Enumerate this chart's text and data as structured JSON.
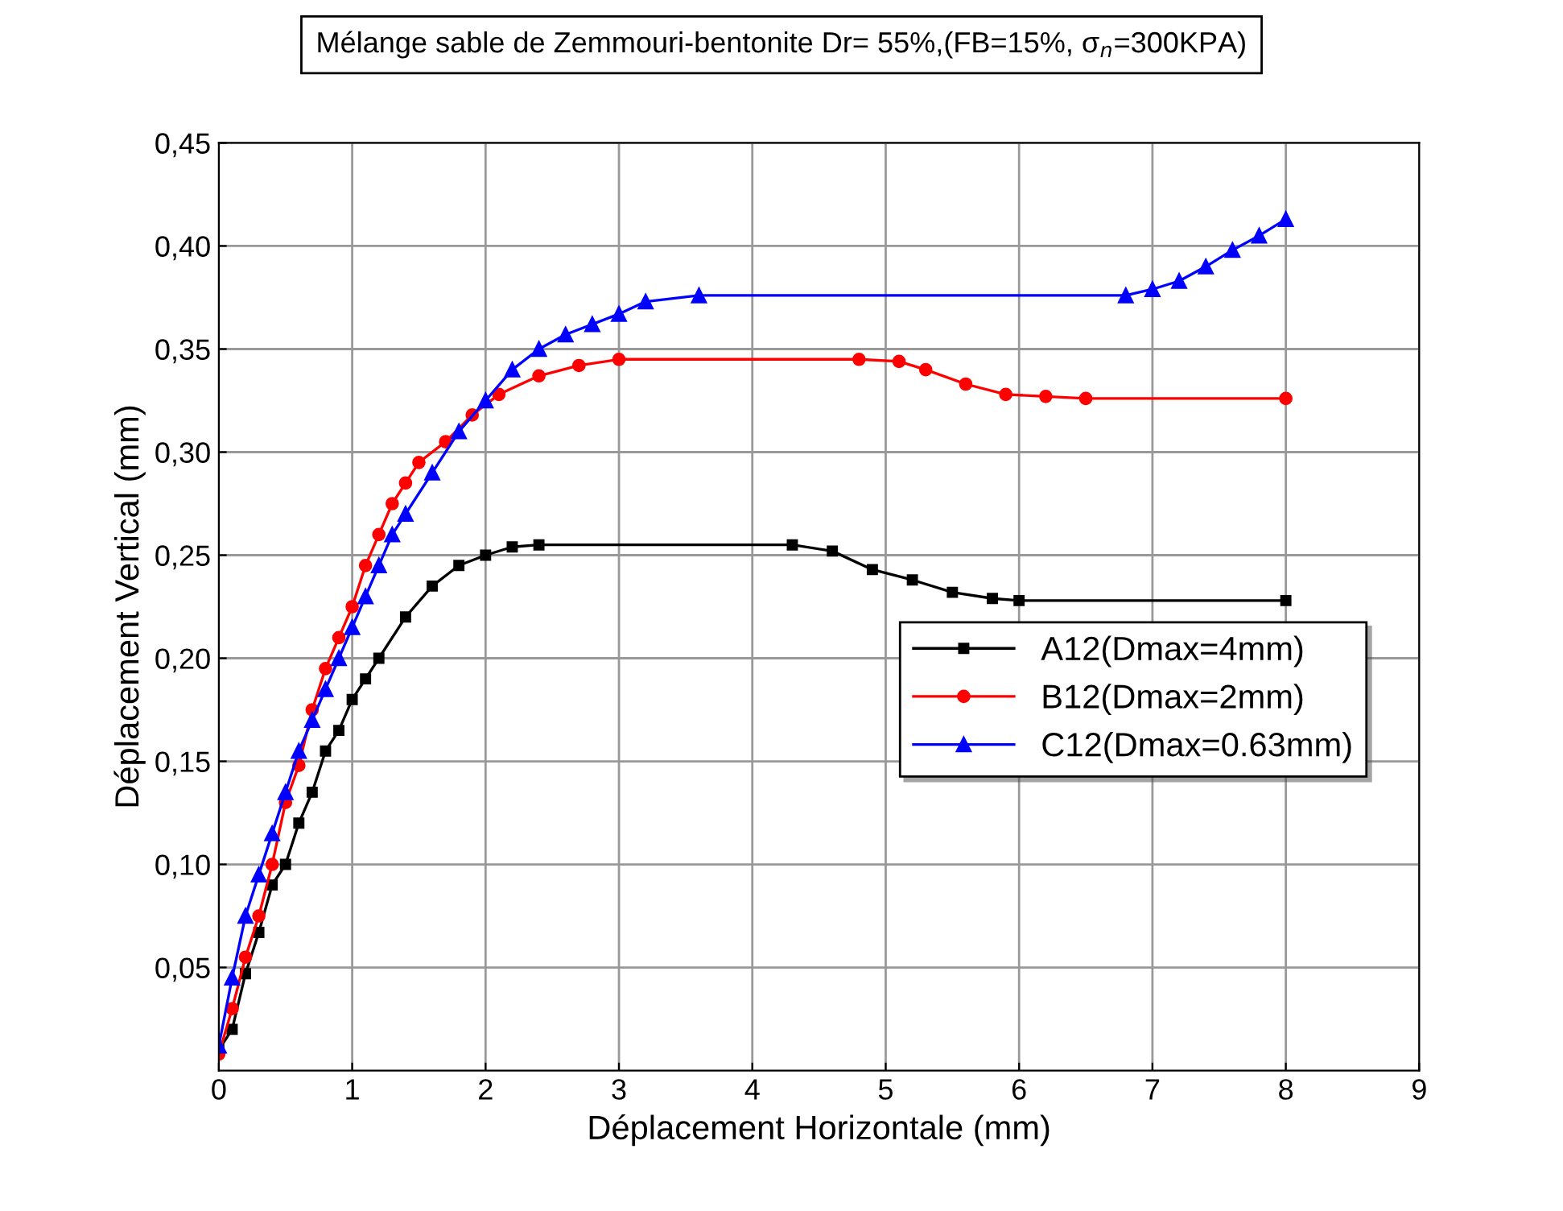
{
  "chart_data": {
    "type": "line",
    "title": "Mélange sable de Zemmouri-bentonite Dr= 55%,(FB=15%, σ$_{n}$=300KPA)",
    "xlabel": "Déplacement Horizontale (mm)",
    "ylabel": "Déplacement Vertical (mm)",
    "xlim": [
      0,
      9
    ],
    "xticks": [
      0,
      1,
      2,
      3,
      4,
      5,
      6,
      7,
      8,
      9
    ],
    "ylim": [
      0,
      0.45
    ],
    "yticks": [
      {
        "value": 0.05,
        "label": "0,05"
      },
      {
        "value": 0.1,
        "label": "0,10"
      },
      {
        "value": 0.15,
        "label": "0,15"
      },
      {
        "value": 0.2,
        "label": "0,20"
      },
      {
        "value": 0.25,
        "label": "0,25"
      },
      {
        "value": 0.3,
        "label": "0,30"
      },
      {
        "value": 0.35,
        "label": "0,35"
      },
      {
        "value": 0.4,
        "label": "0,40"
      },
      {
        "value": 0.45,
        "label": "0,45"
      }
    ],
    "grid": true,
    "legend": "right",
    "line_style": "solid",
    "series": [
      {
        "name": "A12(Dmax=4mm)",
        "color": "#000000",
        "marker": "square",
        "x": [
          0,
          0.1,
          0.2,
          0.3,
          0.4,
          0.5,
          0.6,
          0.7,
          0.8,
          0.9,
          1.0,
          1.1,
          1.2,
          1.4,
          1.6,
          1.8,
          2.0,
          2.2,
          2.4,
          4.3,
          4.6,
          4.9,
          5.2,
          5.5,
          5.8,
          6.0,
          8.0
        ],
        "values": [
          0.01,
          0.02,
          0.047,
          0.067,
          0.09,
          0.1,
          0.12,
          0.135,
          0.155,
          0.165,
          0.18,
          0.19,
          0.2,
          0.22,
          0.235,
          0.245,
          0.25,
          0.254,
          0.255,
          0.255,
          0.252,
          0.243,
          0.238,
          0.232,
          0.229,
          0.228,
          0.228
        ]
      },
      {
        "name": "B12(Dmax=2mm)",
        "color": "#ff0000",
        "marker": "circle",
        "x": [
          0,
          0.1,
          0.2,
          0.3,
          0.4,
          0.5,
          0.6,
          0.7,
          0.8,
          0.9,
          1.0,
          1.1,
          1.2,
          1.3,
          1.4,
          1.5,
          1.7,
          1.9,
          2.1,
          2.4,
          2.7,
          3.0,
          4.8,
          5.1,
          5.3,
          5.6,
          5.9,
          6.2,
          6.5,
          8.0
        ],
        "values": [
          0.008,
          0.03,
          0.055,
          0.075,
          0.1,
          0.13,
          0.148,
          0.175,
          0.195,
          0.21,
          0.225,
          0.245,
          0.26,
          0.275,
          0.285,
          0.295,
          0.305,
          0.318,
          0.328,
          0.337,
          0.342,
          0.345,
          0.345,
          0.344,
          0.34,
          0.333,
          0.328,
          0.327,
          0.326,
          0.326
        ]
      },
      {
        "name": "C12(Dmax=0.63mm)",
        "color": "#0000ff",
        "marker": "triangle",
        "x": [
          0,
          0.1,
          0.2,
          0.3,
          0.4,
          0.5,
          0.6,
          0.7,
          0.8,
          0.9,
          1.0,
          1.1,
          1.2,
          1.3,
          1.4,
          1.6,
          1.8,
          2.0,
          2.2,
          2.4,
          2.6,
          2.8,
          3.0,
          3.2,
          3.6,
          6.8,
          7.0,
          7.2,
          7.4,
          7.6,
          7.8,
          8.0
        ],
        "values": [
          0.012,
          0.045,
          0.075,
          0.095,
          0.115,
          0.135,
          0.155,
          0.17,
          0.185,
          0.2,
          0.215,
          0.23,
          0.245,
          0.26,
          0.27,
          0.29,
          0.31,
          0.325,
          0.34,
          0.35,
          0.357,
          0.362,
          0.367,
          0.373,
          0.376,
          0.376,
          0.379,
          0.383,
          0.39,
          0.398,
          0.405,
          0.413
        ]
      }
    ]
  }
}
